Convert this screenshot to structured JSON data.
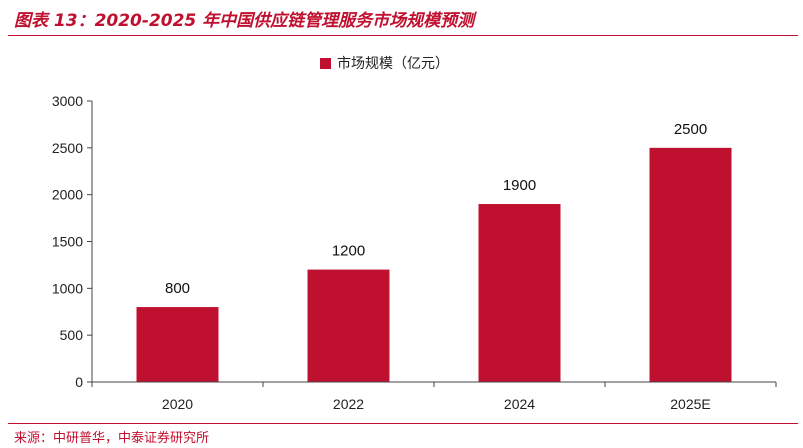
{
  "header": {
    "title": "图表 13：2020-2025 年中国供应链管理服务市场规模预测"
  },
  "footer": {
    "source": "来源：中研普华，中泰证券研究所"
  },
  "colors": {
    "accent": "#c0102f",
    "bar": "#c0102f",
    "axis": "#444444"
  },
  "chart_data": {
    "type": "bar",
    "title": "",
    "xlabel": "",
    "ylabel": "",
    "categories": [
      "2020",
      "2022",
      "2024",
      "2025E"
    ],
    "series": [
      {
        "name": "市场规模（亿元）",
        "values": [
          800,
          1200,
          1900,
          2500
        ],
        "data_labels": [
          "800",
          "1200",
          "1900",
          "2500"
        ]
      }
    ],
    "ylim": [
      0,
      3000
    ],
    "yticks": [
      0,
      500,
      1000,
      1500,
      2000,
      2500,
      3000
    ],
    "grid": false,
    "legend_position": "top-center"
  }
}
